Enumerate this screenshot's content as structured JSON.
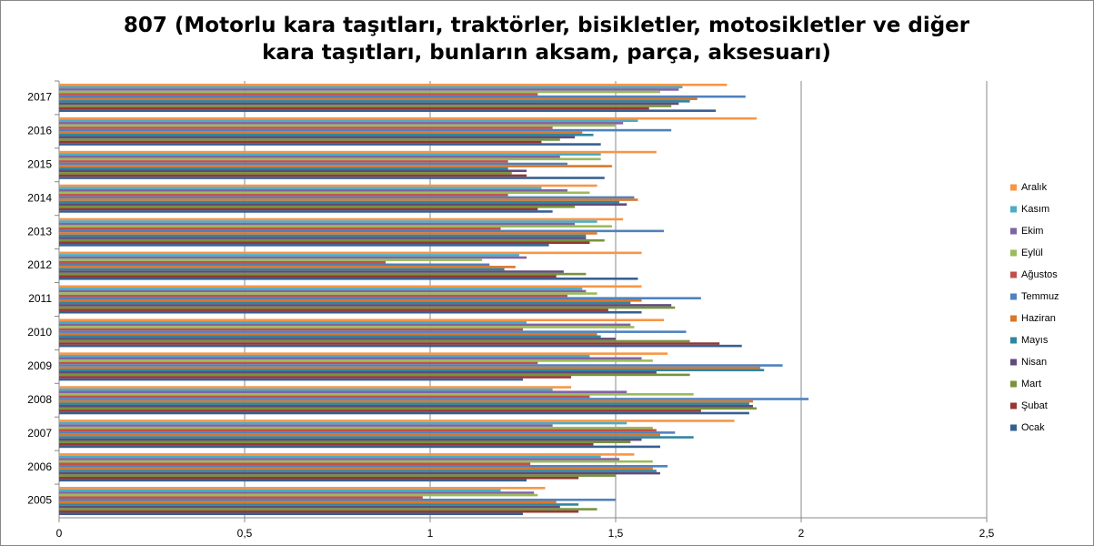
{
  "chart_data": {
    "type": "hbar",
    "title": "807 (Motorlu kara taşıtları, traktörler, bisikletler, motosikletler ve diğer kara taşıtları, bunların aksam, parça, aksesuarı)",
    "categories": [
      "2005",
      "2006",
      "2007",
      "2008",
      "2009",
      "2010",
      "2011",
      "2012",
      "2013",
      "2014",
      "2015",
      "2016",
      "2017"
    ],
    "xlim": [
      0,
      2.5
    ],
    "xticks": [
      0,
      {
        "value": 0.5,
        "label": "0,5"
      },
      1,
      {
        "value": 1.5,
        "label": "1,5"
      },
      2,
      {
        "value": 2.5,
        "label": "2,5"
      }
    ],
    "grid": true,
    "legend": "right",
    "series": [
      {
        "name": "Aralık",
        "color": "#f79646",
        "values": [
          1.31,
          1.55,
          1.82,
          1.38,
          1.64,
          1.63,
          1.57,
          1.57,
          1.52,
          1.45,
          1.61,
          1.88,
          1.8
        ]
      },
      {
        "name": "Kasım",
        "color": "#4bacc6",
        "values": [
          1.19,
          1.46,
          1.53,
          1.33,
          1.43,
          1.26,
          1.41,
          1.24,
          1.45,
          1.3,
          1.46,
          1.56,
          1.68
        ]
      },
      {
        "name": "Ekim",
        "color": "#8064a2",
        "values": [
          1.28,
          1.51,
          1.33,
          1.53,
          1.57,
          1.54,
          1.42,
          1.26,
          1.39,
          1.37,
          1.35,
          1.52,
          1.67
        ]
      },
      {
        "name": "Eylül",
        "color": "#9bbb59",
        "values": [
          1.29,
          1.6,
          1.6,
          1.71,
          1.6,
          1.55,
          1.45,
          1.14,
          1.49,
          1.43,
          1.46,
          1.5,
          1.62
        ]
      },
      {
        "name": "Ağustos",
        "color": "#c0504d",
        "values": [
          0.98,
          1.27,
          1.61,
          1.43,
          1.29,
          1.25,
          1.37,
          0.88,
          1.19,
          1.21,
          1.21,
          1.33,
          1.29
        ]
      },
      {
        "name": "Temmuz",
        "color": "#4f81bd",
        "values": [
          1.5,
          1.64,
          1.66,
          2.02,
          1.95,
          1.69,
          1.73,
          1.16,
          1.63,
          1.55,
          1.37,
          1.65,
          1.85
        ]
      },
      {
        "name": "Haziran",
        "color": "#d9782d",
        "values": [
          1.34,
          1.6,
          1.62,
          1.87,
          1.89,
          1.45,
          1.57,
          1.23,
          1.45,
          1.56,
          1.49,
          1.41,
          1.72
        ]
      },
      {
        "name": "Mayıs",
        "color": "#31859c",
        "values": [
          1.4,
          1.61,
          1.71,
          1.86,
          1.9,
          1.46,
          1.54,
          1.2,
          1.42,
          1.51,
          1.21,
          1.44,
          1.7
        ]
      },
      {
        "name": "Nisan",
        "color": "#604a7b",
        "values": [
          1.35,
          1.62,
          1.57,
          1.87,
          1.61,
          1.5,
          1.65,
          1.36,
          1.42,
          1.53,
          1.26,
          1.39,
          1.67
        ]
      },
      {
        "name": "Mart",
        "color": "#77933c",
        "values": [
          1.45,
          1.5,
          1.54,
          1.88,
          1.7,
          1.7,
          1.66,
          1.42,
          1.47,
          1.39,
          1.22,
          1.35,
          1.65
        ]
      },
      {
        "name": "Şubat",
        "color": "#953735",
        "values": [
          1.4,
          1.4,
          1.44,
          1.73,
          1.38,
          1.78,
          1.48,
          1.34,
          1.43,
          1.29,
          1.26,
          1.3,
          1.59
        ]
      },
      {
        "name": "Ocak",
        "color": "#376092",
        "values": [
          1.25,
          1.26,
          1.62,
          1.86,
          1.25,
          1.84,
          1.57,
          1.56,
          1.32,
          1.33,
          1.47,
          1.46,
          1.77
        ]
      }
    ]
  }
}
